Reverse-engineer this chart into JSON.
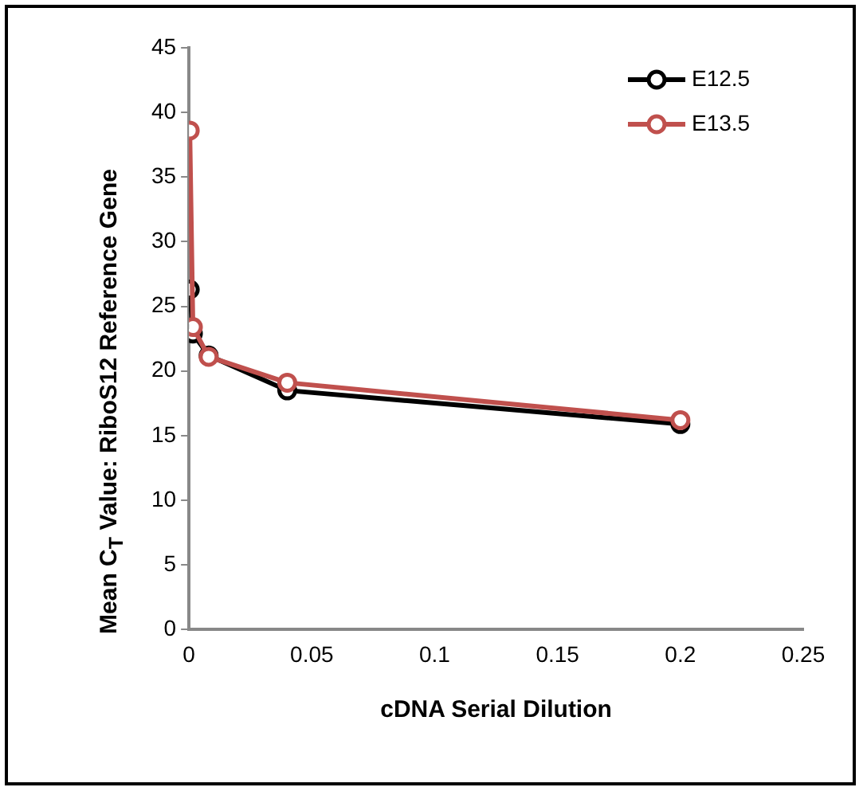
{
  "chart_data": {
    "type": "line",
    "xlabel": "cDNA Serial Dilution",
    "ylabel": "Mean C$_{T}$ Value: RiboS12 Reference Gene",
    "x": [
      0.00032,
      0.0016,
      0.008,
      0.04,
      0.2
    ],
    "series": [
      {
        "name": "E12.5",
        "color": "#000000",
        "values": [
          26.3,
          22.9,
          21.2,
          18.5,
          15.9
        ]
      },
      {
        "name": "E13.5",
        "color": "#c0504d",
        "values": [
          38.6,
          23.4,
          21.1,
          19.1,
          16.2
        ]
      }
    ],
    "xlim": [
      0,
      0.25
    ],
    "xticks": [
      0,
      0.05,
      0.1,
      0.15,
      0.2,
      0.25
    ],
    "ylim": [
      0,
      45
    ],
    "yticks": [
      0,
      5,
      10,
      15,
      20,
      25,
      30,
      35,
      40,
      45
    ],
    "grid": false,
    "legend": "top right",
    "marker": "circle",
    "line_style": "solid"
  }
}
